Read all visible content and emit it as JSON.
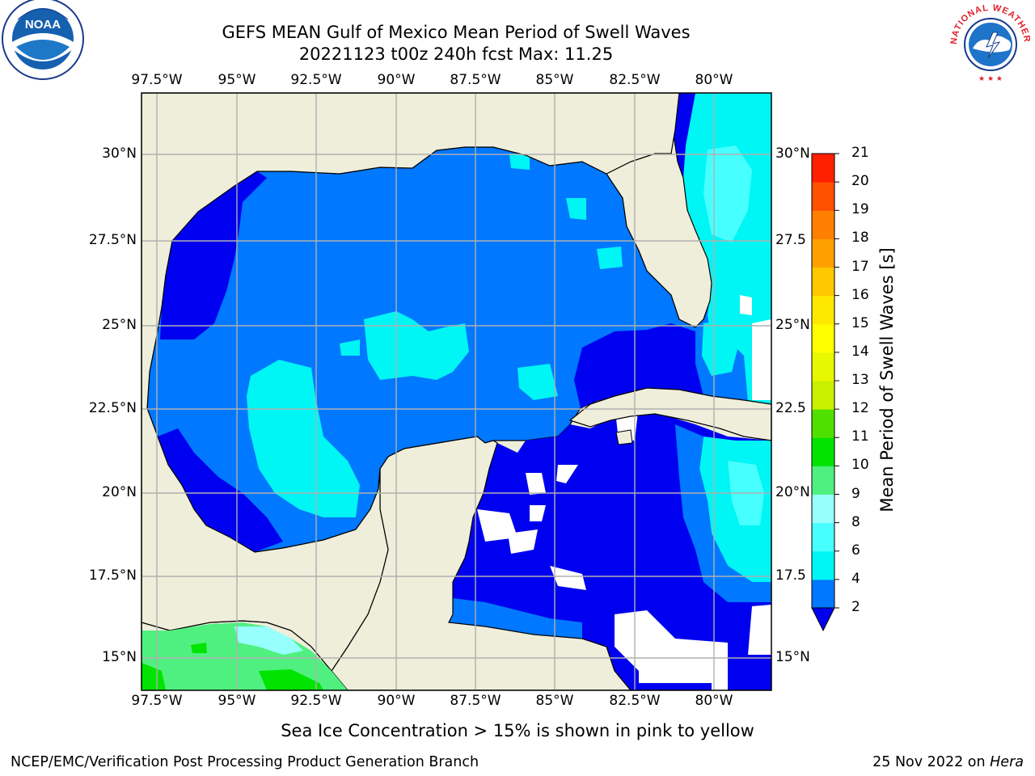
{
  "title": {
    "line1": "GEFS MEAN Gulf of Mexico Mean Period of Swell Waves",
    "line2": "20221123 t00z 240h fcst   Max: 11.25"
  },
  "map": {
    "lon_labels": [
      "97.5°W",
      "95°W",
      "92.5°W",
      "90°W",
      "87.5°W",
      "85°W",
      "82.5°W",
      "80°W"
    ],
    "lat_labels_left": [
      "30°N",
      "27.5°N",
      "25°N",
      "22.5°N",
      "20°N",
      "17.5°N",
      "15°N"
    ],
    "lat_labels_right": [
      "30°N",
      "27.5",
      "25°N",
      "22.5",
      "20°N",
      "17.5",
      "15°N"
    ],
    "colors": {
      "land": "#efeedb",
      "period_2_4": "#0078ff",
      "period_below_2": "#0000f0",
      "period_4_6": "#00f5f5",
      "period_6_8": "#48ffff",
      "period_8_9": "#98ffff",
      "period_9_10": "#50f080",
      "period_10_11": "#00e400"
    }
  },
  "colorbar": {
    "label": "Mean Period of Swell Waves [s]",
    "ticks": [
      "2",
      "4",
      "6",
      "8",
      "9",
      "10",
      "11",
      "12",
      "13",
      "14",
      "15",
      "16",
      "17",
      "18",
      "19",
      "20",
      "21"
    ],
    "colors": [
      "#0078ff",
      "#00f5f5",
      "#48ffff",
      "#98ffff",
      "#50f080",
      "#00e400",
      "#50e000",
      "#c8f000",
      "#e8f800",
      "#ffff00",
      "#ffe800",
      "#ffc800",
      "#ffa000",
      "#ff8000",
      "#ff5000",
      "#ff2000"
    ],
    "extend_color": "#0000f0"
  },
  "caption": "Sea Ice Concentration > 15% is shown in pink to yellow",
  "footer": {
    "left": "NCEP/EMC/Verification Post Processing Product Generation Branch",
    "right_date": "25 Nov 2022 on ",
    "right_host": "Hera"
  },
  "logos": {
    "noaa": "NOAA",
    "nws_ring": "NATIONAL WEATHER SERVICE"
  }
}
